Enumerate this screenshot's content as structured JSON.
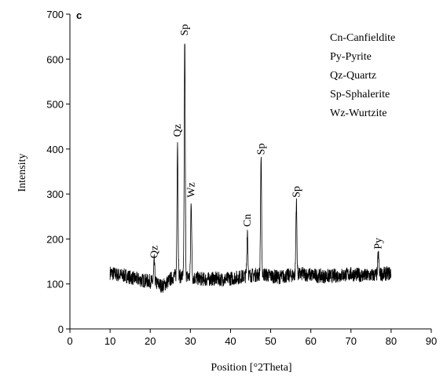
{
  "chart_data": {
    "type": "line",
    "panel_label": "c",
    "xlabel": "Position [°2Theta]",
    "ylabel": "Intensity",
    "xlim": [
      0,
      90
    ],
    "ylim": [
      0,
      700
    ],
    "xticks": [
      0,
      10,
      20,
      30,
      40,
      50,
      60,
      70,
      80,
      90
    ],
    "yticks": [
      0,
      100,
      200,
      300,
      400,
      500,
      600,
      700
    ],
    "grid": false,
    "legend_position": "top-right",
    "legend": [
      "Cn-Canfieldite",
      "Py-Pyrite",
      "Qz-Quartz",
      "Sp-Sphalerite",
      "Wz-Wurtzite"
    ],
    "baseline": {
      "x_start": 10,
      "x_end": 80,
      "points": [
        [
          10,
          125
        ],
        [
          12,
          120
        ],
        [
          14,
          118
        ],
        [
          16,
          112
        ],
        [
          18,
          108
        ],
        [
          20,
          106
        ],
        [
          22,
          100
        ],
        [
          23,
          95
        ],
        [
          24,
          102
        ],
        [
          25,
          110
        ],
        [
          26,
          118
        ],
        [
          30,
          115
        ],
        [
          32,
          112
        ],
        [
          34,
          110
        ],
        [
          36,
          112
        ],
        [
          38,
          110
        ],
        [
          40,
          112
        ],
        [
          42,
          115
        ],
        [
          44,
          118
        ],
        [
          46,
          120
        ],
        [
          48,
          122
        ],
        [
          50,
          118
        ],
        [
          52,
          115
        ],
        [
          54,
          118
        ],
        [
          56,
          120
        ],
        [
          58,
          122
        ],
        [
          60,
          120
        ],
        [
          62,
          118
        ],
        [
          64,
          117
        ],
        [
          66,
          118
        ],
        [
          68,
          120
        ],
        [
          70,
          122
        ],
        [
          72,
          120
        ],
        [
          74,
          118
        ],
        [
          76,
          120
        ],
        [
          78,
          122
        ],
        [
          80,
          124
        ]
      ]
    },
    "peaks": [
      {
        "x": 21.0,
        "y": 150,
        "label": "Qz"
      },
      {
        "x": 26.8,
        "y": 420,
        "label": "Qz"
      },
      {
        "x": 28.6,
        "y": 645,
        "label": "Sp"
      },
      {
        "x": 30.2,
        "y": 285,
        "label": "Wz"
      },
      {
        "x": 44.2,
        "y": 220,
        "label": "Cn"
      },
      {
        "x": 47.6,
        "y": 380,
        "label": "Sp"
      },
      {
        "x": 56.4,
        "y": 285,
        "label": "Sp"
      },
      {
        "x": 76.8,
        "y": 170,
        "label": "Py"
      }
    ]
  }
}
